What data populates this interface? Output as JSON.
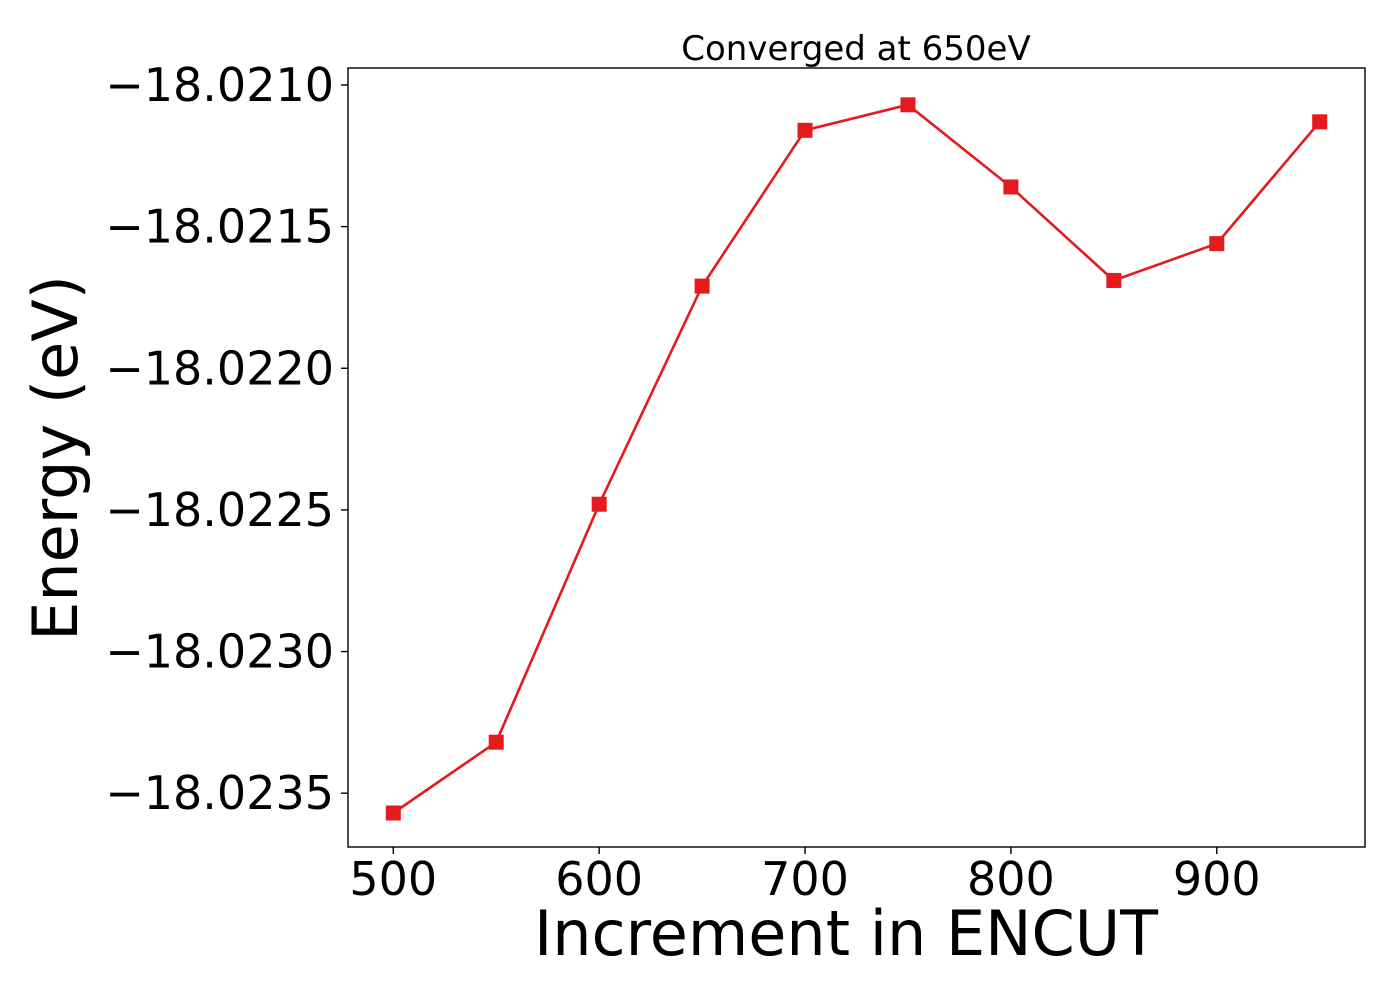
{
  "colors": {
    "series": "#e41a1c",
    "axes": "#000000",
    "background": "#ffffff"
  },
  "chart_data": {
    "type": "line",
    "title": "Converged at 650eV",
    "xlabel": "Increment in ENCUT",
    "ylabel": "Energy (eV)",
    "x": [
      500,
      550,
      600,
      650,
      700,
      750,
      800,
      850,
      900,
      950
    ],
    "series": [
      {
        "marker": "square",
        "values": [
          -18.02357,
          -18.02332,
          -18.02248,
          -18.02171,
          -18.02116,
          -18.02107,
          -18.02136,
          -18.02169,
          -18.02156,
          -18.02113
        ]
      }
    ],
    "xlim": [
      478,
      972
    ],
    "ylim": [
      -18.02369,
      -18.02094
    ],
    "xticks": [
      500,
      600,
      700,
      800,
      900
    ],
    "xtick_labels": [
      "500",
      "600",
      "700",
      "800",
      "900"
    ],
    "yticks": [
      -18.0235,
      -18.023,
      -18.0225,
      -18.022,
      -18.0215,
      -18.021
    ],
    "ytick_labels": [
      "−18.0235",
      "−18.0230",
      "−18.0225",
      "−18.0220",
      "−18.0215",
      "−18.0210"
    ],
    "grid": false,
    "legend": false
  }
}
